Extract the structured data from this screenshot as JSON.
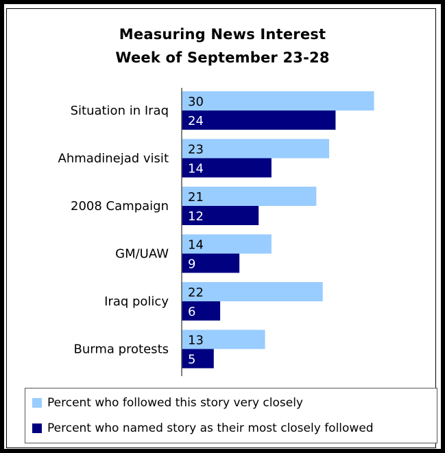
{
  "title_line1": "Measuring News Interest",
  "title_line2": "Week of September 23-28",
  "colors": {
    "series1": "#99ccff",
    "series2": "#000080",
    "axis": "#555555"
  },
  "chart_data": {
    "type": "bar",
    "orientation": "horizontal",
    "title": "Measuring News Interest",
    "subtitle": "Week of September 23-28",
    "categories": [
      "Situation in Iraq",
      "Ahmadinejad visit",
      "2008 Campaign",
      "GM/UAW",
      "Iraq policy",
      "Burma protests"
    ],
    "series": [
      {
        "name": "Percent who followed this story very closely",
        "values": [
          30,
          23,
          21,
          14,
          22,
          13
        ]
      },
      {
        "name": "Percent who named story as their most closely followed",
        "values": [
          24,
          14,
          12,
          9,
          6,
          5
        ]
      }
    ],
    "xlim": [
      0,
      30
    ],
    "grid": false,
    "data_labels": true,
    "legend_position": "bottom"
  },
  "legend": [
    "Percent who followed this story very closely",
    "Percent who named story as their most closely followed"
  ]
}
